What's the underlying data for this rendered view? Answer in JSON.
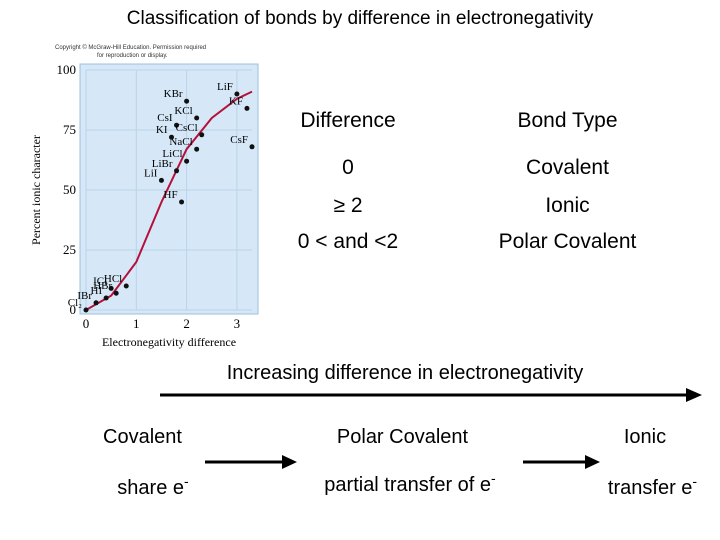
{
  "title": "Classification of bonds by difference in electronegativity",
  "copyright": [
    "Copyright © McGraw-Hill Education. Permission required",
    "for reproduction or display."
  ],
  "table": {
    "headers": [
      "Difference",
      "Bond Type"
    ],
    "rows": [
      {
        "difference": "0",
        "bond_type": "Covalent"
      },
      {
        "difference": "≥ 2",
        "bond_type": "Ionic"
      },
      {
        "difference": "0 < and <2",
        "bond_type": "Polar Covalent"
      }
    ]
  },
  "spectrum": {
    "arrow_label": "Increasing difference in electronegativity",
    "types": [
      "Covalent",
      "Polar Covalent",
      "Ionic"
    ],
    "descriptions": [
      {
        "text": "share e",
        "sup": "-"
      },
      {
        "text": "partial transfer of e",
        "sup": "-"
      },
      {
        "text": "transfer e",
        "sup": "-"
      }
    ]
  },
  "chart_data": {
    "type": "scatter",
    "title": "",
    "xlabel": "Electronegativity difference",
    "ylabel": "Percent ionic character",
    "xlim": [
      0,
      3.3
    ],
    "ylim": [
      0,
      100
    ],
    "xticks": [
      "0",
      "1",
      "2",
      "3"
    ],
    "yticks": [
      "0",
      "25",
      "50",
      "75",
      "100"
    ],
    "grid": true,
    "colors": {
      "plot_bg": "#d6e8f7",
      "curve": "#b5103c",
      "points": "#111111"
    },
    "points": [
      {
        "label": "Cl₂",
        "x": 0.0,
        "y": 0
      },
      {
        "label": "IBr",
        "x": 0.2,
        "y": 3
      },
      {
        "label": "HI",
        "x": 0.4,
        "y": 5
      },
      {
        "label": "HBr",
        "x": 0.6,
        "y": 7
      },
      {
        "label": "ICl",
        "x": 0.5,
        "y": 9
      },
      {
        "label": "HCl",
        "x": 0.8,
        "y": 10
      },
      {
        "label": "HF",
        "x": 1.9,
        "y": 45
      },
      {
        "label": "LiI",
        "x": 1.5,
        "y": 54
      },
      {
        "label": "LiBr",
        "x": 1.8,
        "y": 58
      },
      {
        "label": "LiCl",
        "x": 2.0,
        "y": 62
      },
      {
        "label": "NaCl",
        "x": 2.2,
        "y": 67
      },
      {
        "label": "KI",
        "x": 1.7,
        "y": 72
      },
      {
        "label": "CsI",
        "x": 1.8,
        "y": 77
      },
      {
        "label": "CsCl",
        "x": 2.3,
        "y": 73
      },
      {
        "label": "KCl",
        "x": 2.2,
        "y": 80
      },
      {
        "label": "KBr",
        "x": 2.0,
        "y": 87
      },
      {
        "label": "CsF",
        "x": 3.3,
        "y": 68
      },
      {
        "label": "KF",
        "x": 3.2,
        "y": 84
      },
      {
        "label": "LiF",
        "x": 3.0,
        "y": 90
      }
    ],
    "curve": [
      [
        0,
        0
      ],
      [
        0.5,
        6
      ],
      [
        1,
        20
      ],
      [
        1.5,
        45
      ],
      [
        2,
        67
      ],
      [
        2.5,
        80
      ],
      [
        3,
        88
      ],
      [
        3.3,
        91
      ]
    ]
  }
}
